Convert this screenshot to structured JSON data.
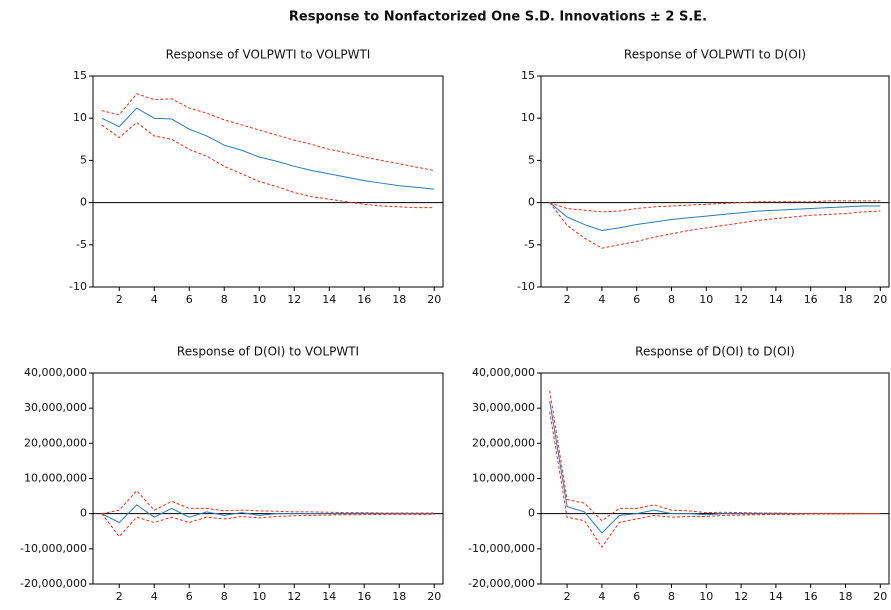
{
  "title": "Response to Nonfactorized One S.D. Innovations ± 2 S.E.",
  "chart_data": [
    {
      "type": "line",
      "title": "Response of VOLPWTI to VOLPWTI",
      "x": [
        1,
        2,
        3,
        4,
        5,
        6,
        7,
        8,
        9,
        10,
        11,
        12,
        13,
        14,
        15,
        16,
        17,
        18,
        19,
        20
      ],
      "xlim": [
        0.5,
        20.5
      ],
      "xticks": [
        2,
        4,
        6,
        8,
        10,
        12,
        14,
        16,
        18,
        20
      ],
      "ylim": [
        -10,
        15
      ],
      "yticks": [
        -10,
        -5,
        0,
        5,
        10,
        15
      ],
      "series": [
        {
          "color": "#2b7bb9",
          "dashed": false,
          "values": [
            10,
            9,
            11.2,
            10,
            9.9,
            8.7,
            7.9,
            6.8,
            6.2,
            5.4,
            4.9,
            4.3,
            3.8,
            3.4,
            3.0,
            2.6,
            2.3,
            2.0,
            1.8,
            1.6
          ]
        },
        {
          "color": "#e8301c",
          "dashed": true,
          "values": [
            10.9,
            10.4,
            12.9,
            12.2,
            12.3,
            11.2,
            10.6,
            9.8,
            9.2,
            8.6,
            8.0,
            7.4,
            6.9,
            6.3,
            5.9,
            5.4,
            5.0,
            4.6,
            4.2,
            3.8
          ]
        },
        {
          "color": "#e8301c",
          "dashed": true,
          "values": [
            9.2,
            7.7,
            9.5,
            7.9,
            7.5,
            6.3,
            5.5,
            4.3,
            3.4,
            2.5,
            1.9,
            1.2,
            0.7,
            0.4,
            0.1,
            -0.2,
            -0.4,
            -0.5,
            -0.6,
            -0.6
          ]
        }
      ]
    },
    {
      "type": "line",
      "title": "Response of VOLPWTI to D(OI)",
      "x": [
        1,
        2,
        3,
        4,
        5,
        6,
        7,
        8,
        9,
        10,
        11,
        12,
        13,
        14,
        15,
        16,
        17,
        18,
        19,
        20
      ],
      "xlim": [
        0.5,
        20.5
      ],
      "xticks": [
        2,
        4,
        6,
        8,
        10,
        12,
        14,
        16,
        18,
        20
      ],
      "ylim": [
        -10,
        15
      ],
      "yticks": [
        -10,
        -5,
        0,
        5,
        10,
        15
      ],
      "series": [
        {
          "color": "#2b7bb9",
          "dashed": false,
          "values": [
            0,
            -1.7,
            -2.6,
            -3.3,
            -3.0,
            -2.6,
            -2.3,
            -2.0,
            -1.8,
            -1.6,
            -1.4,
            -1.2,
            -1.0,
            -0.9,
            -0.8,
            -0.7,
            -0.6,
            -0.5,
            -0.4,
            -0.4
          ]
        },
        {
          "color": "#e8301c",
          "dashed": true,
          "values": [
            0,
            -0.7,
            -0.9,
            -1.1,
            -1.0,
            -0.7,
            -0.5,
            -0.4,
            -0.3,
            -0.2,
            -0.1,
            0,
            0.1,
            0.1,
            0.1,
            0.1,
            0.2,
            0.2,
            0.2,
            0.2
          ]
        },
        {
          "color": "#e8301c",
          "dashed": true,
          "values": [
            0,
            -2.7,
            -4.2,
            -5.4,
            -5.0,
            -4.6,
            -4.1,
            -3.7,
            -3.3,
            -3.0,
            -2.7,
            -2.4,
            -2.1,
            -1.9,
            -1.7,
            -1.5,
            -1.4,
            -1.3,
            -1.1,
            -1.0
          ]
        }
      ]
    },
    {
      "type": "line",
      "title": "Response of D(OI) to VOLPWTI",
      "x": [
        1,
        2,
        3,
        4,
        5,
        6,
        7,
        8,
        9,
        10,
        11,
        12,
        13,
        14,
        15,
        16,
        17,
        18,
        19,
        20
      ],
      "xlim": [
        0.5,
        20.5
      ],
      "xticks": [
        2,
        4,
        6,
        8,
        10,
        12,
        14,
        16,
        18,
        20
      ],
      "ylim": [
        -20000000,
        40000000
      ],
      "yticks": [
        {
          "value": -20000000,
          "label": "-20,000,000"
        },
        {
          "value": -10000000,
          "label": "-10,000,000"
        },
        0,
        {
          "value": 10000000,
          "label": "10,000,000"
        },
        {
          "value": 20000000,
          "label": "20,000,000"
        },
        {
          "value": 30000000,
          "label": "30,000,000"
        },
        {
          "value": 40000000,
          "label": "40,000,000"
        }
      ],
      "series": [
        {
          "color": "#2b7bb9",
          "dashed": false,
          "values": [
            0,
            -2500000,
            2500000,
            -1000000,
            1500000,
            -1000000,
            500000,
            -500000,
            300000,
            -500000,
            0,
            0,
            0,
            0,
            0,
            0,
            0,
            0,
            0,
            0
          ]
        },
        {
          "color": "#e8301c",
          "dashed": true,
          "values": [
            0,
            1000000,
            6500000,
            1000000,
            3500000,
            1500000,
            1500000,
            800000,
            1000000,
            800000,
            700000,
            500000,
            500000,
            400000,
            300000,
            300000,
            200000,
            200000,
            200000,
            200000
          ]
        },
        {
          "color": "#e8301c",
          "dashed": true,
          "values": [
            0,
            -6500000,
            -1000000,
            -2500000,
            -1000000,
            -2500000,
            -1000000,
            -1500000,
            -800000,
            -1200000,
            -800000,
            -600000,
            -500000,
            -400000,
            -300000,
            -300000,
            -200000,
            -200000,
            -200000,
            -200000
          ]
        }
      ]
    },
    {
      "type": "line",
      "title": "Response of D(OI) to D(OI)",
      "x": [
        1,
        2,
        3,
        4,
        5,
        6,
        7,
        8,
        9,
        10,
        11,
        12,
        13,
        14,
        15,
        16,
        17,
        18,
        19,
        20
      ],
      "xlim": [
        0.5,
        20.5
      ],
      "xticks": [
        2,
        4,
        6,
        8,
        10,
        12,
        14,
        16,
        18,
        20
      ],
      "ylim": [
        -20000000,
        40000000
      ],
      "yticks": [
        {
          "value": -20000000,
          "label": "-20,000,000"
        },
        {
          "value": -10000000,
          "label": "-10,000,000"
        },
        0,
        {
          "value": 10000000,
          "label": "10,000,000"
        },
        {
          "value": 20000000,
          "label": "20,000,000"
        },
        {
          "value": 30000000,
          "label": "30,000,000"
        },
        {
          "value": 40000000,
          "label": "40,000,000"
        }
      ],
      "series": [
        {
          "color": "#2b7bb9",
          "dashed": false,
          "values": [
            32000000,
            2000000,
            500000,
            -5500000,
            -500000,
            0,
            1000000,
            0,
            0,
            -300000,
            0,
            0,
            0,
            0,
            0,
            0,
            0,
            0,
            0,
            0
          ]
        },
        {
          "color": "#e8301c",
          "dashed": true,
          "values": [
            35000000,
            4000000,
            3000000,
            -2000000,
            1500000,
            1500000,
            2500000,
            1000000,
            800000,
            300000,
            400000,
            300000,
            200000,
            200000,
            100000,
            100000,
            100000,
            100000,
            0,
            0
          ]
        },
        {
          "color": "#e8301c",
          "dashed": true,
          "values": [
            29000000,
            -1000000,
            -2000000,
            -9500000,
            -2500000,
            -1500000,
            -500000,
            -1000000,
            -800000,
            -800000,
            -500000,
            -400000,
            -300000,
            -200000,
            -200000,
            -100000,
            -100000,
            -100000,
            0,
            0
          ]
        }
      ]
    }
  ]
}
